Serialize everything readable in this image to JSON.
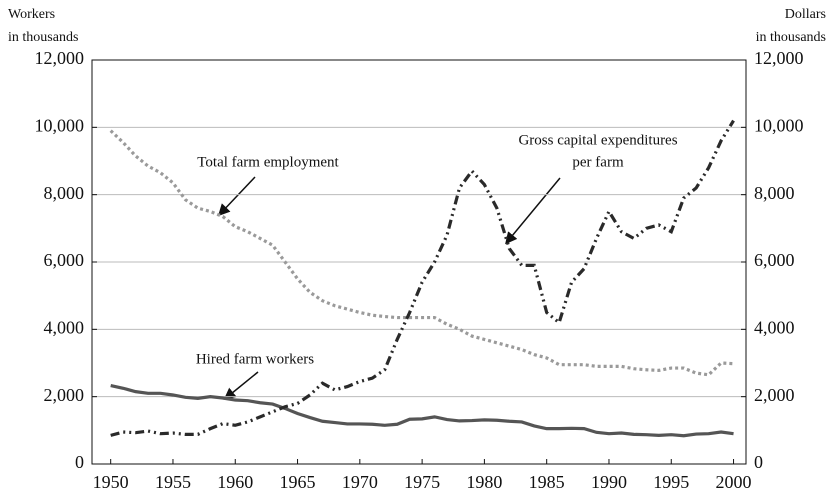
{
  "chart_data": {
    "type": "line",
    "y_label": [
      "Workers",
      "in thousands"
    ],
    "y2_label": [
      "Dollars",
      "in thousands"
    ],
    "x": [
      1950,
      1951,
      1952,
      1953,
      1954,
      1955,
      1956,
      1957,
      1958,
      1959,
      1960,
      1961,
      1962,
      1963,
      1964,
      1965,
      1966,
      1967,
      1968,
      1969,
      1970,
      1971,
      1972,
      1973,
      1974,
      1975,
      1976,
      1977,
      1978,
      1979,
      1980,
      1981,
      1982,
      1983,
      1984,
      1985,
      1986,
      1987,
      1988,
      1989,
      1990,
      1991,
      1992,
      1993,
      1994,
      1995,
      1996,
      1997,
      1998,
      1999,
      2000
    ],
    "xlim": [
      1948.5,
      2001
    ],
    "xticks": [
      1950,
      1955,
      1960,
      1965,
      1970,
      1975,
      1980,
      1985,
      1990,
      1995,
      2000
    ],
    "ylim": [
      0,
      12000
    ],
    "yticks": [
      0,
      {
        "value": 2000,
        "label": "2,000"
      },
      {
        "value": 4000,
        "label": "4,000"
      },
      {
        "value": 6000,
        "label": "6,000"
      },
      {
        "value": 8000,
        "label": "8,000"
      },
      {
        "value": 10000,
        "label": "10,000"
      },
      {
        "value": 12000,
        "label": "12,000"
      }
    ],
    "y2lim": [
      0,
      12000
    ],
    "y2ticks": [
      0,
      {
        "value": 2000,
        "label": "2,000"
      },
      {
        "value": 4000,
        "label": "4,000"
      },
      {
        "value": 6000,
        "label": "6,000"
      },
      {
        "value": 8000,
        "label": "8,000"
      },
      {
        "value": 10000,
        "label": "10,000"
      },
      {
        "value": 12000,
        "label": "12,000"
      }
    ],
    "grid": true,
    "series": [
      {
        "name": "Total farm employment",
        "color": "#9a9a9a",
        "style": "dotted",
        "values": [
          9900,
          9550,
          9150,
          8850,
          8650,
          8350,
          7850,
          7600,
          7500,
          7350,
          7050,
          6900,
          6700,
          6500,
          6000,
          5500,
          5100,
          4850,
          4700,
          4600,
          4500,
          4420,
          4380,
          4350,
          4350,
          4350,
          4350,
          4150,
          4000,
          3800,
          3700,
          3600,
          3500,
          3400,
          3250,
          3150,
          2950,
          2950,
          2950,
          2900,
          2900,
          2900,
          2830,
          2800,
          2780,
          2850,
          2850,
          2700,
          2650,
          3000,
          2980
        ]
      },
      {
        "name": "Hired farm workers",
        "color": "#555555",
        "style": "solid",
        "values": [
          2330,
          2250,
          2150,
          2100,
          2100,
          2050,
          1980,
          1950,
          2000,
          1960,
          1900,
          1880,
          1820,
          1780,
          1650,
          1500,
          1380,
          1270,
          1230,
          1190,
          1190,
          1180,
          1150,
          1180,
          1330,
          1340,
          1400,
          1320,
          1280,
          1290,
          1310,
          1300,
          1270,
          1250,
          1130,
          1050,
          1050,
          1060,
          1050,
          940,
          900,
          920,
          880,
          870,
          850,
          870,
          840,
          890,
          900,
          950,
          900
        ]
      },
      {
        "name": [
          "Gross capital expenditures",
          "per farm"
        ],
        "color": "#2a2a2a",
        "style": "dashdot",
        "axis": "y2",
        "values": [
          850,
          950,
          930,
          980,
          900,
          920,
          880,
          880,
          1050,
          1200,
          1150,
          1250,
          1400,
          1550,
          1700,
          1800,
          2050,
          2400,
          2200,
          2300,
          2450,
          2550,
          2800,
          3700,
          4500,
          5400,
          6000,
          6800,
          8200,
          8700,
          8300,
          7600,
          6400,
          5900,
          5900,
          4500,
          4200,
          5400,
          5800,
          6700,
          7500,
          6900,
          6700,
          7000,
          7100,
          6900,
          7900,
          8200,
          8800,
          9600,
          10200
        ]
      }
    ]
  }
}
